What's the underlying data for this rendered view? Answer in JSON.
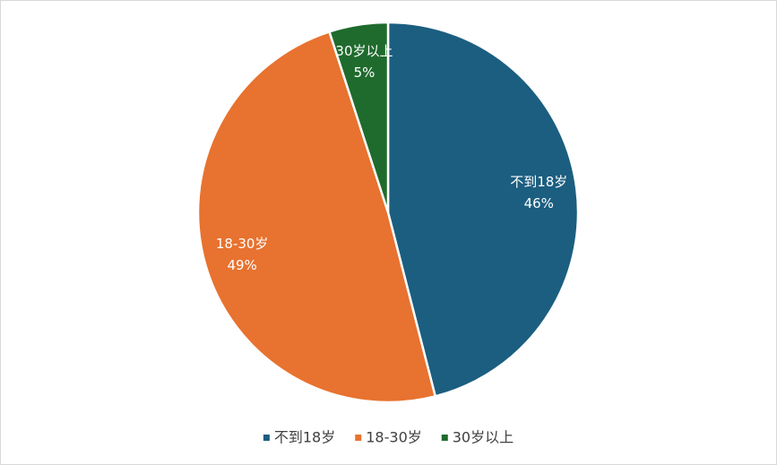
{
  "chart_data": {
    "type": "pie",
    "categories": [
      "不到18岁",
      "18-30岁",
      "30岁以上"
    ],
    "values": [
      46,
      49,
      5
    ],
    "value_labels": [
      "46%",
      "49%",
      "5%"
    ],
    "colors": [
      "#1b5e80",
      "#e8722f",
      "#1f6b2d"
    ],
    "legend": "bottom"
  }
}
